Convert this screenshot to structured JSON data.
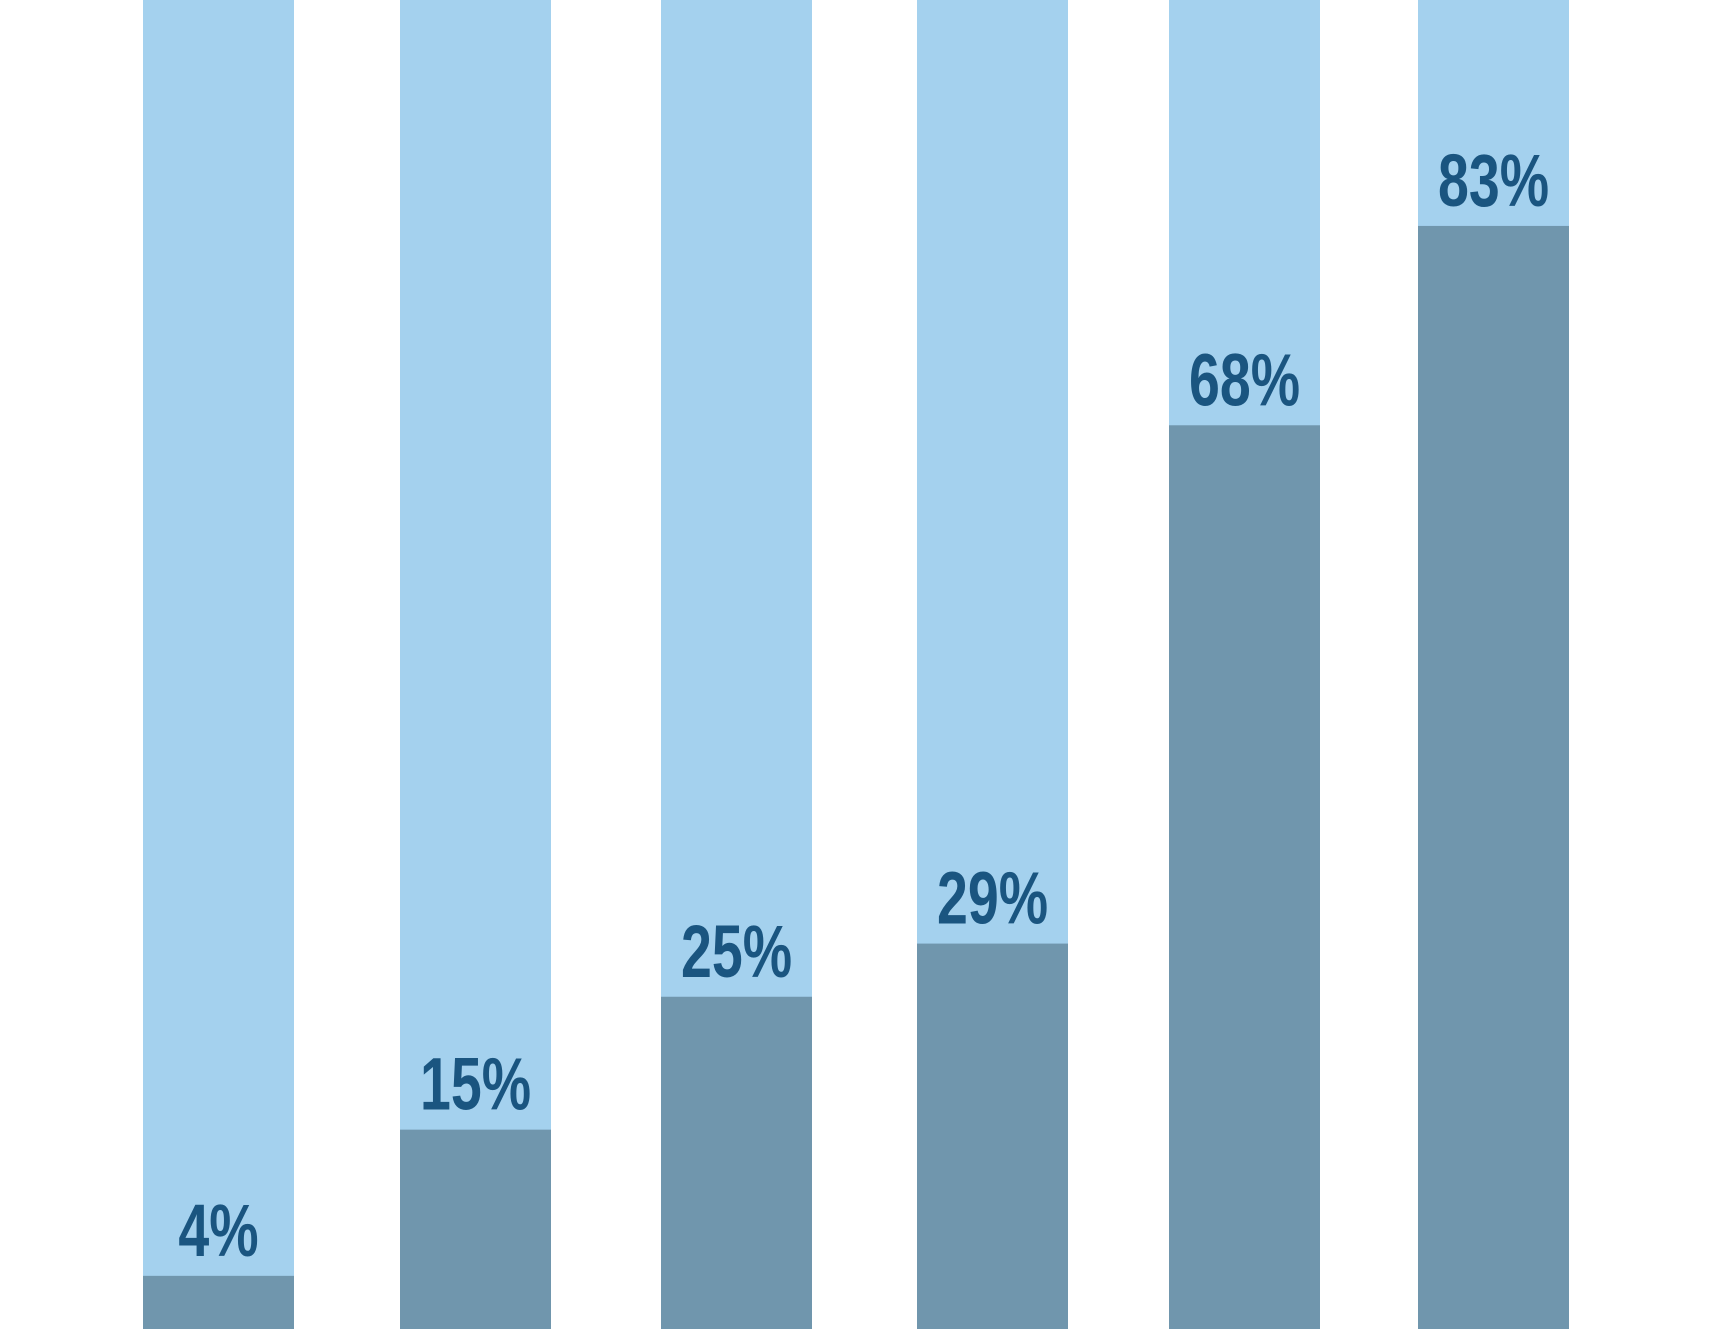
{
  "chart_data": {
    "type": "bar",
    "values": [
      4,
      15,
      25,
      29,
      68,
      83
    ],
    "value_labels": [
      "4%",
      "15%",
      "25%",
      "29%",
      "68%",
      "83%"
    ],
    "ylim": [
      0,
      100
    ],
    "color": "#7096ad",
    "track_color": "#a4d1ee",
    "label_color": "#1a5580"
  }
}
